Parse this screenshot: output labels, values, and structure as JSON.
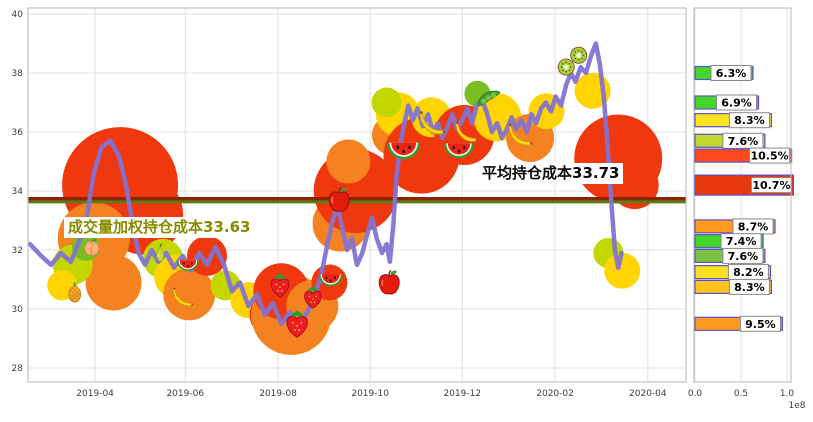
{
  "figure": {
    "description": "股票筹码分布/持仓成本图",
    "background": "#ffffff"
  },
  "chart_data": [
    {
      "type": "line",
      "name": "price-with-volume-clusters",
      "ylim": [
        27.5,
        40.2
      ],
      "y_ticks": [
        28,
        30,
        32,
        34,
        36,
        38,
        40
      ],
      "x_ticks": [
        {
          "label": "2019-04",
          "t": 0.102
        },
        {
          "label": "2019-06",
          "t": 0.239
        },
        {
          "label": "2019-08",
          "t": 0.38
        },
        {
          "label": "2019-10",
          "t": 0.52
        },
        {
          "label": "2019-12",
          "t": 0.66
        },
        {
          "label": "2020-02",
          "t": 0.801
        },
        {
          "label": "2020-04",
          "t": 0.942
        }
      ],
      "series": [
        {
          "name": "price",
          "color": "#8273d3",
          "points": [
            [
              0.003,
              32.2
            ],
            [
              0.02,
              31.8
            ],
            [
              0.035,
              31.5
            ],
            [
              0.05,
              31.9
            ],
            [
              0.065,
              31.6
            ],
            [
              0.08,
              32.4
            ],
            [
              0.09,
              33.2
            ],
            [
              0.1,
              34.6
            ],
            [
              0.112,
              35.5
            ],
            [
              0.125,
              35.7
            ],
            [
              0.138,
              35.2
            ],
            [
              0.148,
              34.3
            ],
            [
              0.158,
              33.0
            ],
            [
              0.168,
              31.9
            ],
            [
              0.178,
              31.5
            ],
            [
              0.188,
              32.0
            ],
            [
              0.198,
              31.6
            ],
            [
              0.21,
              31.9
            ],
            [
              0.222,
              31.4
            ],
            [
              0.235,
              31.8
            ],
            [
              0.248,
              31.3
            ],
            [
              0.26,
              31.9
            ],
            [
              0.272,
              31.5
            ],
            [
              0.285,
              32.1
            ],
            [
              0.298,
              31.5
            ],
            [
              0.31,
              30.6
            ],
            [
              0.322,
              30.9
            ],
            [
              0.335,
              30.1
            ],
            [
              0.348,
              30.5
            ],
            [
              0.36,
              29.8
            ],
            [
              0.372,
              30.2
            ],
            [
              0.385,
              29.5
            ],
            [
              0.398,
              29.9
            ],
            [
              0.41,
              29.2
            ],
            [
              0.422,
              29.8
            ],
            [
              0.434,
              30.3
            ],
            [
              0.446,
              31.2
            ],
            [
              0.455,
              32.2
            ],
            [
              0.463,
              33.0
            ],
            [
              0.47,
              33.5
            ],
            [
              0.477,
              32.8
            ],
            [
              0.485,
              32.0
            ],
            [
              0.492,
              32.4
            ],
            [
              0.5,
              31.5
            ],
            [
              0.508,
              31.9
            ],
            [
              0.515,
              32.5
            ],
            [
              0.523,
              33.1
            ],
            [
              0.53,
              32.4
            ],
            [
              0.538,
              31.9
            ],
            [
              0.545,
              32.2
            ],
            [
              0.55,
              31.6
            ],
            [
              0.555,
              32.8
            ],
            [
              0.56,
              34.5
            ],
            [
              0.566,
              35.6
            ],
            [
              0.572,
              36.3
            ],
            [
              0.578,
              36.9
            ],
            [
              0.585,
              36.4
            ],
            [
              0.592,
              36.8
            ],
            [
              0.6,
              36.2
            ],
            [
              0.608,
              36.6
            ],
            [
              0.615,
              36.0
            ],
            [
              0.623,
              36.3
            ],
            [
              0.63,
              35.8
            ],
            [
              0.638,
              36.2
            ],
            [
              0.645,
              36.6
            ],
            [
              0.652,
              36.1
            ],
            [
              0.66,
              36.4
            ],
            [
              0.668,
              36.8
            ],
            [
              0.675,
              36.3
            ],
            [
              0.682,
              36.9
            ],
            [
              0.69,
              37.1
            ],
            [
              0.698,
              36.6
            ],
            [
              0.705,
              36.0
            ],
            [
              0.713,
              36.3
            ],
            [
              0.72,
              35.8
            ],
            [
              0.728,
              36.1
            ],
            [
              0.735,
              36.5
            ],
            [
              0.742,
              36.1
            ],
            [
              0.75,
              36.4
            ],
            [
              0.758,
              36.0
            ],
            [
              0.765,
              36.6
            ],
            [
              0.772,
              36.3
            ],
            [
              0.78,
              36.8
            ],
            [
              0.787,
              37.0
            ],
            [
              0.795,
              36.7
            ],
            [
              0.802,
              37.2
            ],
            [
              0.81,
              36.9
            ],
            [
              0.818,
              37.6
            ],
            [
              0.825,
              38.0
            ],
            [
              0.832,
              37.7
            ],
            [
              0.84,
              38.2
            ],
            [
              0.848,
              38.0
            ],
            [
              0.856,
              38.6
            ],
            [
              0.863,
              39.0
            ],
            [
              0.869,
              38.3
            ],
            [
              0.875,
              37.2
            ],
            [
              0.881,
              35.5
            ],
            [
              0.887,
              33.5
            ],
            [
              0.892,
              32.0
            ],
            [
              0.897,
              31.4
            ],
            [
              0.902,
              31.9
            ]
          ]
        }
      ],
      "cost_lines": [
        {
          "name": "平均持仓成本",
          "value": 33.73,
          "label": "平均持仓成本33.73",
          "color": "#8b2500"
        },
        {
          "name": "成交量加权持仓成本",
          "value": 33.63,
          "label": "成交量加权持仓成本33.63",
          "color": "#5f7a12"
        }
      ],
      "volume_clusters": [
        {
          "t": 0.14,
          "price": 34.2,
          "r": 58,
          "color": "#f0380f"
        },
        {
          "t": 0.175,
          "price": 33.2,
          "r": 40,
          "color": "#f0380f"
        },
        {
          "t": 0.1,
          "price": 32.4,
          "r": 36,
          "color": "#f58220"
        },
        {
          "t": 0.13,
          "price": 30.9,
          "r": 28,
          "color": "#f58220"
        },
        {
          "t": 0.068,
          "price": 31.5,
          "r": 20,
          "color": "#c4d600"
        },
        {
          "t": 0.052,
          "price": 30.8,
          "r": 15,
          "color": "#ffd400"
        },
        {
          "t": 0.088,
          "price": 32.1,
          "r": 14,
          "color": "#78be20"
        },
        {
          "t": 0.205,
          "price": 31.7,
          "r": 20,
          "color": "#c4d600"
        },
        {
          "t": 0.225,
          "price": 31.1,
          "r": 22,
          "color": "#ffd400"
        },
        {
          "t": 0.245,
          "price": 30.5,
          "r": 26,
          "color": "#f58220"
        },
        {
          "t": 0.272,
          "price": 31.8,
          "r": 20,
          "color": "#f0380f"
        },
        {
          "t": 0.3,
          "price": 30.8,
          "r": 15,
          "color": "#c4d600"
        },
        {
          "t": 0.335,
          "price": 30.3,
          "r": 18,
          "color": "#ffd400"
        },
        {
          "t": 0.37,
          "price": 29.8,
          "r": 22,
          "color": "#f0380f"
        },
        {
          "t": 0.4,
          "price": 29.8,
          "r": 40,
          "color": "#f58220"
        },
        {
          "t": 0.385,
          "price": 30.6,
          "r": 28,
          "color": "#f0380f"
        },
        {
          "t": 0.432,
          "price": 30.1,
          "r": 26,
          "color": "#f58220"
        },
        {
          "t": 0.458,
          "price": 30.9,
          "r": 18,
          "color": "#f0380f"
        },
        {
          "t": 0.475,
          "price": 32.9,
          "r": 28,
          "color": "#f58220"
        },
        {
          "t": 0.498,
          "price": 34.0,
          "r": 42,
          "color": "#f0380f"
        },
        {
          "t": 0.487,
          "price": 35.0,
          "r": 22,
          "color": "#f58220"
        },
        {
          "t": 0.553,
          "price": 35.9,
          "r": 20,
          "color": "#f58220"
        },
        {
          "t": 0.562,
          "price": 36.6,
          "r": 22,
          "color": "#ffd400"
        },
        {
          "t": 0.545,
          "price": 37.0,
          "r": 15,
          "color": "#c4d600"
        },
        {
          "t": 0.598,
          "price": 35.2,
          "r": 38,
          "color": "#f0380f"
        },
        {
          "t": 0.613,
          "price": 36.5,
          "r": 20,
          "color": "#ffd400"
        },
        {
          "t": 0.663,
          "price": 35.9,
          "r": 30,
          "color": "#f0380f"
        },
        {
          "t": 0.683,
          "price": 37.3,
          "r": 13,
          "color": "#78be20"
        },
        {
          "t": 0.713,
          "price": 36.5,
          "r": 24,
          "color": "#ffd400"
        },
        {
          "t": 0.763,
          "price": 35.8,
          "r": 24,
          "color": "#f58220"
        },
        {
          "t": 0.788,
          "price": 36.7,
          "r": 18,
          "color": "#ffd400"
        },
        {
          "t": 0.858,
          "price": 37.4,
          "r": 18,
          "color": "#ffd400"
        },
        {
          "t": 0.897,
          "price": 35.1,
          "r": 44,
          "color": "#f0380f"
        },
        {
          "t": 0.922,
          "price": 34.2,
          "r": 24,
          "color": "#f0380f"
        },
        {
          "t": 0.882,
          "price": 31.9,
          "r": 15,
          "color": "#c4d600"
        },
        {
          "t": 0.903,
          "price": 31.3,
          "r": 18,
          "color": "#ffd400"
        }
      ],
      "fruit_markers": [
        {
          "fruit": "pineapple",
          "t": 0.071,
          "price": 30.6,
          "size": 24
        },
        {
          "fruit": "peach",
          "t": 0.097,
          "price": 32.1,
          "size": 20
        },
        {
          "fruit": "pear",
          "t": 0.201,
          "price": 31.9,
          "size": 21
        },
        {
          "fruit": "banana",
          "t": 0.236,
          "price": 30.4,
          "size": 24
        },
        {
          "fruit": "watermelon",
          "t": 0.243,
          "price": 31.5,
          "size": 25
        },
        {
          "fruit": "strawberry",
          "t": 0.383,
          "price": 30.8,
          "size": 29
        },
        {
          "fruit": "strawberry",
          "t": 0.409,
          "price": 29.5,
          "size": 33
        },
        {
          "fruit": "strawberry",
          "t": 0.433,
          "price": 30.4,
          "size": 27
        },
        {
          "fruit": "watermelon",
          "t": 0.46,
          "price": 31.0,
          "size": 27
        },
        {
          "fruit": "apple",
          "t": 0.473,
          "price": 33.7,
          "size": 29
        },
        {
          "fruit": "apple",
          "t": 0.549,
          "price": 30.9,
          "size": 29
        },
        {
          "fruit": "watermelon",
          "t": 0.571,
          "price": 35.4,
          "size": 38
        },
        {
          "fruit": "banana",
          "t": 0.615,
          "price": 36.3,
          "size": 30
        },
        {
          "fruit": "watermelon",
          "t": 0.655,
          "price": 35.4,
          "size": 34
        },
        {
          "fruit": "banana",
          "t": 0.667,
          "price": 36.0,
          "size": 26
        },
        {
          "fruit": "peas",
          "t": 0.7,
          "price": 37.1,
          "size": 26
        },
        {
          "fruit": "banana",
          "t": 0.749,
          "price": 35.9,
          "size": 28
        },
        {
          "fruit": "kiwi",
          "t": 0.818,
          "price": 38.2,
          "size": 21
        },
        {
          "fruit": "kiwi",
          "t": 0.837,
          "price": 38.6,
          "size": 21
        }
      ]
    },
    {
      "type": "bar",
      "name": "chip-distribution-profile",
      "orientation": "horizontal",
      "xlim": [
        0,
        1.03
      ],
      "x_ticks": [
        {
          "label": "0.0",
          "v": 0.0
        },
        {
          "label": "0.5",
          "v": 0.5
        },
        {
          "label": "1.0",
          "v": 1.0
        }
      ],
      "offset_text": "1e8",
      "bars": [
        {
          "pct": 6.3,
          "shares_1e8": 0.63,
          "price": 38.0,
          "color": "#45d62a",
          "big": false
        },
        {
          "pct": 6.9,
          "shares_1e8": 0.69,
          "price": 37.0,
          "color": "#45d62a",
          "big": false
        },
        {
          "pct": 8.3,
          "shares_1e8": 0.83,
          "price": 36.4,
          "color": "#ffe21e",
          "big": false
        },
        {
          "pct": 7.6,
          "shares_1e8": 0.76,
          "price": 35.7,
          "color": "#c3d82e",
          "big": false
        },
        {
          "pct": 10.5,
          "shares_1e8": 1.05,
          "price": 35.2,
          "color": "#ff4a1e",
          "big": false
        },
        {
          "pct": 10.7,
          "shares_1e8": 1.07,
          "price": 34.2,
          "color": "#e8380d",
          "big": true
        },
        {
          "pct": 8.7,
          "shares_1e8": 0.87,
          "price": 32.8,
          "color": "#ff9a1e",
          "big": false
        },
        {
          "pct": 7.4,
          "shares_1e8": 0.74,
          "price": 32.3,
          "color": "#45d62a",
          "big": false
        },
        {
          "pct": 7.6,
          "shares_1e8": 0.76,
          "price": 31.8,
          "color": "#7ac143",
          "big": false
        },
        {
          "pct": 8.2,
          "shares_1e8": 0.82,
          "price": 31.25,
          "color": "#ffe21e",
          "big": false
        },
        {
          "pct": 8.3,
          "shares_1e8": 0.83,
          "price": 30.75,
          "color": "#ffc41e",
          "big": false
        },
        {
          "pct": 9.5,
          "shares_1e8": 0.95,
          "price": 29.5,
          "color": "#ff9a1e",
          "big": false
        }
      ]
    }
  ]
}
